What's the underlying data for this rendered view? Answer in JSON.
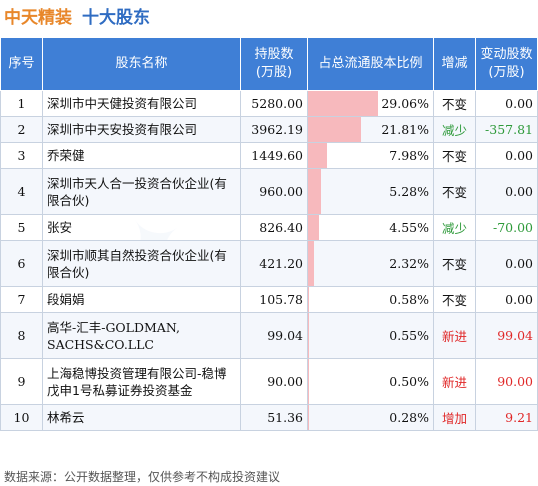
{
  "title": {
    "company": "中天精装",
    "subtitle": "十大股东"
  },
  "headers": {
    "idx": "序号",
    "name": "股东名称",
    "shares_line1": "持股数",
    "shares_line2": "(万股)",
    "ratio": "占总流通股本比例",
    "change": "增减",
    "delta_line1": "变动股数",
    "delta_line2": "(万股)"
  },
  "rows": [
    {
      "idx": "1",
      "name": "深圳市中天健投资有限公司",
      "shares": "5280.00",
      "ratio": "29.06%",
      "ratio_value": 29.06,
      "change": "不变",
      "change_type": "same",
      "delta": "0.00",
      "delta_type": "same"
    },
    {
      "idx": "2",
      "name": "深圳市中天安投资有限公司",
      "shares": "3962.19",
      "ratio": "21.81%",
      "ratio_value": 21.81,
      "change": "减少",
      "change_type": "down",
      "delta": "-357.81",
      "delta_type": "down"
    },
    {
      "idx": "3",
      "name": "乔荣健",
      "shares": "1449.60",
      "ratio": "7.98%",
      "ratio_value": 7.98,
      "change": "不变",
      "change_type": "same",
      "delta": "0.00",
      "delta_type": "same"
    },
    {
      "idx": "4",
      "name": "深圳市天人合一投资合伙企业(有限合伙)",
      "shares": "960.00",
      "ratio": "5.28%",
      "ratio_value": 5.28,
      "change": "不变",
      "change_type": "same",
      "delta": "0.00",
      "delta_type": "same"
    },
    {
      "idx": "5",
      "name": "张安",
      "shares": "826.40",
      "ratio": "4.55%",
      "ratio_value": 4.55,
      "change": "减少",
      "change_type": "down",
      "delta": "-70.00",
      "delta_type": "down"
    },
    {
      "idx": "6",
      "name": "深圳市顺其自然投资合伙企业(有限合伙)",
      "shares": "421.20",
      "ratio": "2.32%",
      "ratio_value": 2.32,
      "change": "不变",
      "change_type": "same",
      "delta": "0.00",
      "delta_type": "same"
    },
    {
      "idx": "7",
      "name": "段娟娟",
      "shares": "105.78",
      "ratio": "0.58%",
      "ratio_value": 0.58,
      "change": "不变",
      "change_type": "same",
      "delta": "0.00",
      "delta_type": "same"
    },
    {
      "idx": "8",
      "name": "高华-汇丰-GOLDMAN, SACHS&CO.LLC",
      "shares": "99.04",
      "ratio": "0.55%",
      "ratio_value": 0.55,
      "change": "新进",
      "change_type": "up",
      "delta": "99.04",
      "delta_type": "up"
    },
    {
      "idx": "9",
      "name": "上海稳博投资管理有限公司-稳博戊申1号私募证券投资基金",
      "shares": "90.00",
      "ratio": "0.50%",
      "ratio_value": 0.5,
      "change": "新进",
      "change_type": "up",
      "delta": "90.00",
      "delta_type": "up"
    },
    {
      "idx": "10",
      "name": "林希云",
      "shares": "51.36",
      "ratio": "0.28%",
      "ratio_value": 0.28,
      "change": "增加",
      "change_type": "up",
      "delta": "9.21",
      "delta_type": "up"
    }
  ],
  "ratio_max": 29.06,
  "footer": "数据来源：公开数据整理，仅供参考不构成投资建议"
}
